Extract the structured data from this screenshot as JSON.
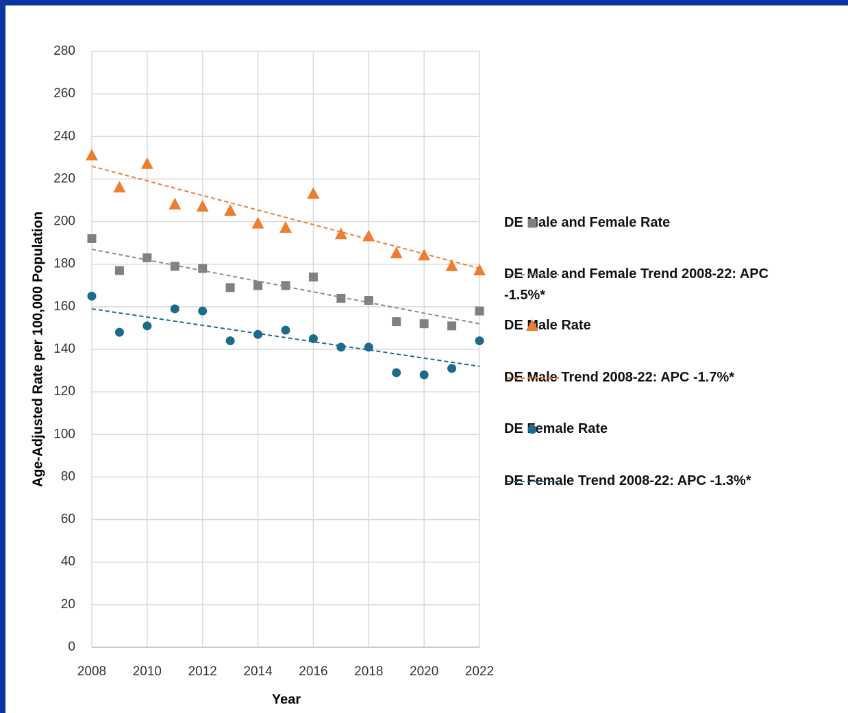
{
  "chart_data": {
    "type": "scatter",
    "xlabel": "Year",
    "ylabel": "Age-Adjusted Rate per 100,000 Population",
    "x": [
      2008,
      2009,
      2010,
      2011,
      2012,
      2013,
      2014,
      2015,
      2016,
      2017,
      2018,
      2019,
      2020,
      2021,
      2022
    ],
    "xlim": [
      2008,
      2022
    ],
    "xticks": [
      2008,
      2010,
      2012,
      2014,
      2016,
      2018,
      2020,
      2022
    ],
    "ylim": [
      0,
      280
    ],
    "yticks": [
      0,
      20,
      40,
      60,
      80,
      100,
      120,
      140,
      160,
      180,
      200,
      220,
      240,
      260,
      280
    ],
    "grid": true,
    "legend": "right",
    "series": [
      {
        "name": "DE Male and Female Rate",
        "color": "#808080",
        "marker": "square",
        "values": [
          192,
          177,
          183,
          179,
          178,
          169,
          170,
          170,
          174,
          164,
          163,
          153,
          152,
          151,
          158
        ]
      },
      {
        "name": "DE Male and Female Trend 2008-22: APC -1.5%*",
        "color": "#8c8c8c",
        "marker": "dashed",
        "x": [
          2008,
          2022
        ],
        "values": [
          187,
          152
        ]
      },
      {
        "name": "DE Male Rate",
        "color": "#ed7d31",
        "marker": "triangle",
        "values": [
          231,
          216,
          227,
          208,
          207,
          205,
          199,
          197,
          213,
          194,
          193,
          185,
          184,
          179,
          177
        ]
      },
      {
        "name": "DE Male Trend 2008-22: APC -1.7%*",
        "color": "#ed7d31",
        "marker": "dashed",
        "x": [
          2008,
          2022
        ],
        "values": [
          226,
          178
        ]
      },
      {
        "name": "DE Female Rate",
        "color": "#1d6a8c",
        "marker": "circle",
        "values": [
          165,
          148,
          151,
          159,
          158,
          144,
          147,
          149,
          145,
          141,
          141,
          129,
          128,
          131,
          144
        ]
      },
      {
        "name": "DE Female Trend 2008-22: APC -1.3%*",
        "color": "#1d6a8c",
        "marker": "dashed",
        "x": [
          2008,
          2022
        ],
        "values": [
          159,
          132
        ]
      }
    ]
  }
}
